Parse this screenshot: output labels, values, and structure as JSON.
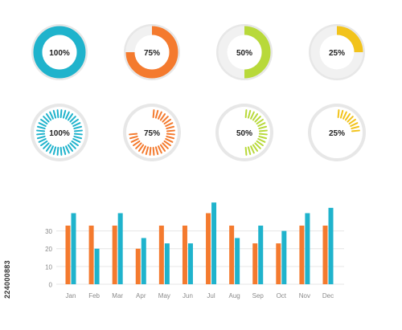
{
  "colors": {
    "teal": "#1fb3cc",
    "orange": "#f47a2e",
    "lime": "#b8d93a",
    "yellow": "#f2c31b",
    "track_light": "#f1f1f1",
    "ring_bg": "#e7e7e7",
    "text": "#222222",
    "axis_text": "#8a8a8a",
    "grid": "#e6e6e6"
  },
  "donuts": [
    {
      "label": "100%",
      "value": 100,
      "color": "teal",
      "style": "solid"
    },
    {
      "label": "75%",
      "value": 75,
      "color": "orange",
      "style": "solid"
    },
    {
      "label": "50%",
      "value": 50,
      "color": "lime",
      "style": "solid"
    },
    {
      "label": "25%",
      "value": 25,
      "color": "yellow",
      "style": "solid"
    },
    {
      "label": "100%",
      "value": 100,
      "color": "teal",
      "style": "ticks"
    },
    {
      "label": "75%",
      "value": 75,
      "color": "orange",
      "style": "ticks"
    },
    {
      "label": "50%",
      "value": 50,
      "color": "lime",
      "style": "ticks"
    },
    {
      "label": "25%",
      "value": 25,
      "color": "yellow",
      "style": "ticks"
    }
  ],
  "chart_data": {
    "type": "bar",
    "categories": [
      "Jan",
      "Feb",
      "Mar",
      "Apr",
      "May",
      "Jun",
      "Jul",
      "Aug",
      "Sep",
      "Oct",
      "Nov",
      "Dec"
    ],
    "series": [
      {
        "values": [
          33,
          33,
          33,
          20,
          33,
          33,
          40,
          33,
          23,
          23,
          33,
          33
        ],
        "color": "orange"
      },
      {
        "values": [
          40,
          20,
          40,
          26,
          23,
          23,
          46,
          26,
          33,
          30,
          40,
          43
        ],
        "color": "teal"
      }
    ],
    "yticks": [
      0,
      10,
      20,
      30
    ],
    "ylim": [
      0,
      47
    ],
    "grid": true,
    "title": "",
    "xlabel": "",
    "ylabel": ""
  },
  "side_id": "224000883"
}
